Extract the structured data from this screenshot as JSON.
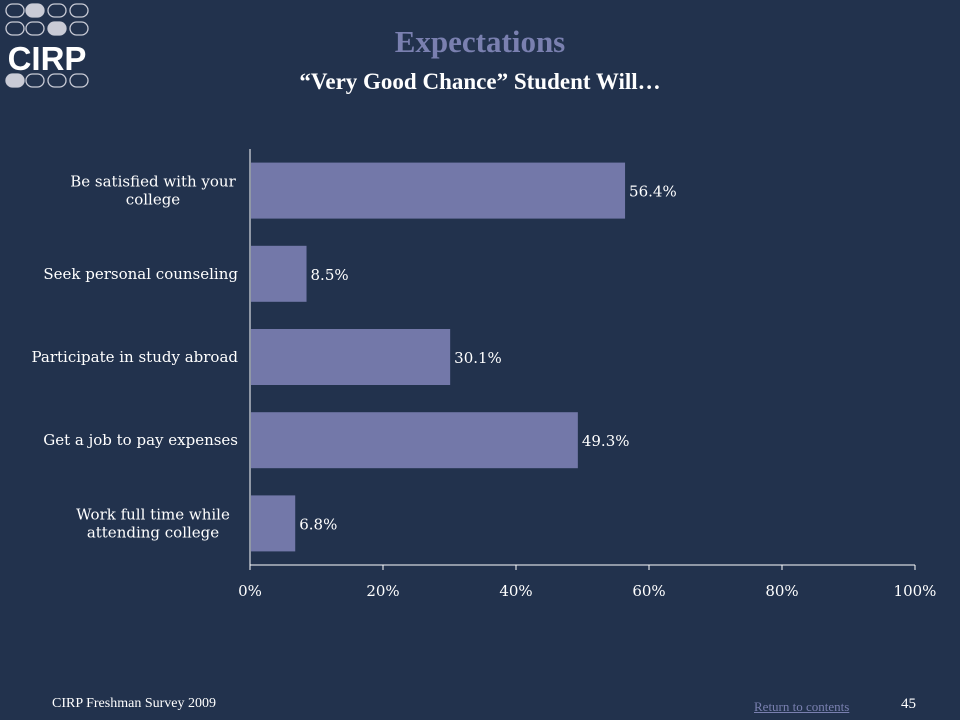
{
  "slide": {
    "title": "Expectations",
    "subtitle": "“Very Good Chance” Student Will…",
    "footer_text": "CIRP Freshman Survey 2009",
    "return_link": "Return to contents",
    "page_number": "45"
  },
  "logo": {
    "text": "CIRP"
  },
  "colors": {
    "background": "#22324d",
    "bar": "#7378a9",
    "text": "#ffffff",
    "title": "#7a80b0",
    "axis": "#ffffff"
  },
  "chart_data": {
    "type": "bar",
    "orientation": "horizontal",
    "categories": [
      [
        "Be satisfied with your",
        "college"
      ],
      [
        "Seek personal counseling"
      ],
      [
        "Participate in study abroad"
      ],
      [
        "Get a job to pay expenses"
      ],
      [
        "Work full time while",
        "attending college"
      ]
    ],
    "values": [
      56.4,
      8.5,
      30.1,
      49.3,
      6.8
    ],
    "value_labels": [
      "56.4%",
      "8.5%",
      "30.1%",
      "49.3%",
      "6.8%"
    ],
    "xlim": [
      0,
      100
    ],
    "xticks": [
      "0%",
      "20%",
      "40%",
      "60%",
      "80%",
      "100%"
    ],
    "xlabel": "",
    "ylabel": "",
    "grid": false,
    "legend": "none"
  }
}
